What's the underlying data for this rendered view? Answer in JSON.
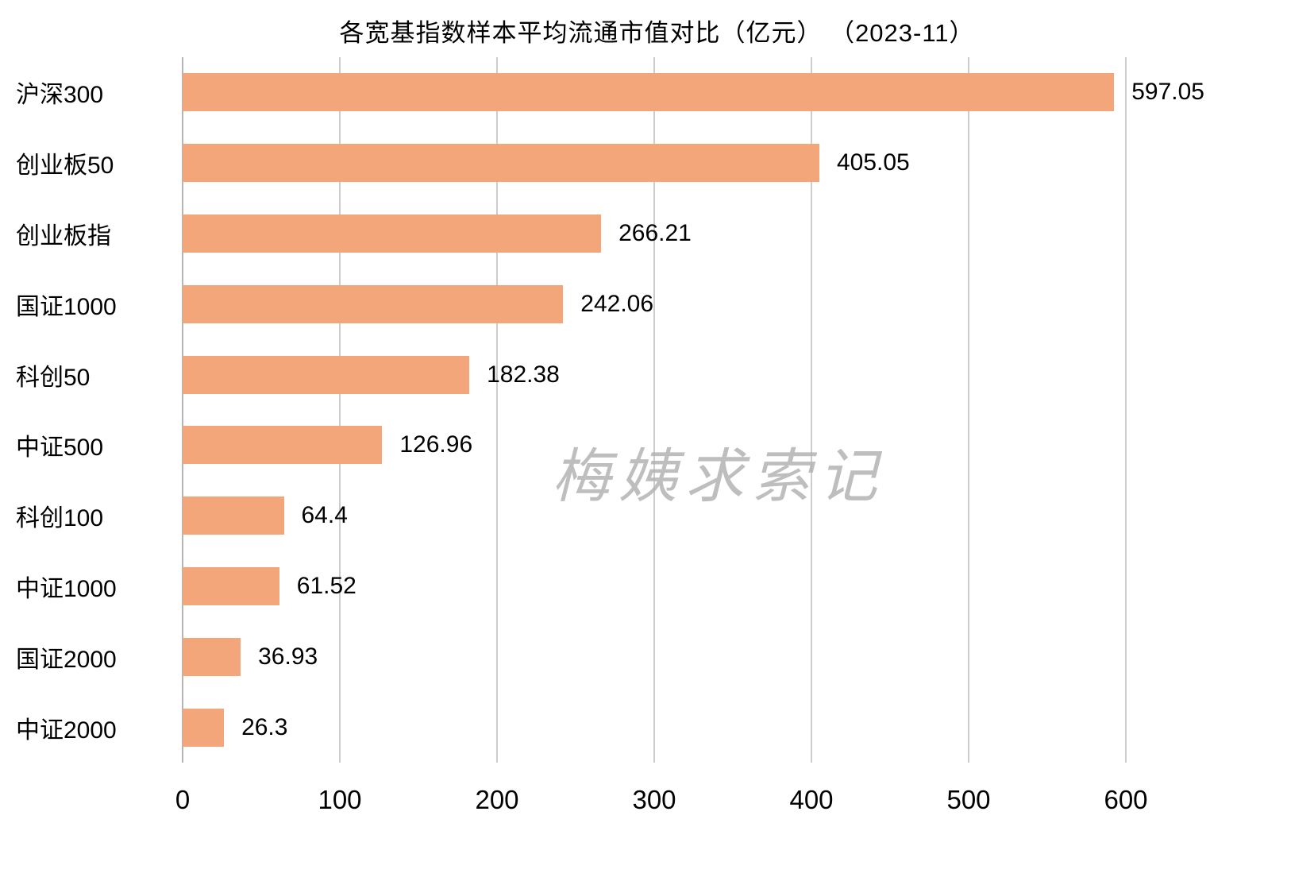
{
  "title": "各宽基指数样本平均流通市值对比（亿元） （2023-11）",
  "watermark": "梅姨求索记",
  "chart_data": {
    "type": "bar",
    "orientation": "horizontal",
    "title": "各宽基指数样本平均流通市值对比（亿元） （2023-11）",
    "categories": [
      "沪深300",
      "创业板50",
      "创业板指",
      "国证1000",
      "科创50",
      "中证500",
      "科创100",
      "中证1000",
      "国证2000",
      "中证2000"
    ],
    "values": [
      597.05,
      405.05,
      266.21,
      242.06,
      182.38,
      126.96,
      64.4,
      61.52,
      36.93,
      26.3
    ],
    "value_labels": [
      "597.05",
      "405.05",
      "266.21",
      "242.06",
      "182.38",
      "126.96",
      "64.4",
      "61.52",
      "36.93",
      "26.3"
    ],
    "x_ticks": [
      0,
      100,
      200,
      300,
      400,
      500,
      600
    ],
    "xlim": [
      0,
      650
    ],
    "xlabel": "",
    "ylabel": "",
    "bar_color": "#F2A679",
    "gridline_color": "#cccccc",
    "grid": true,
    "legend": false
  }
}
